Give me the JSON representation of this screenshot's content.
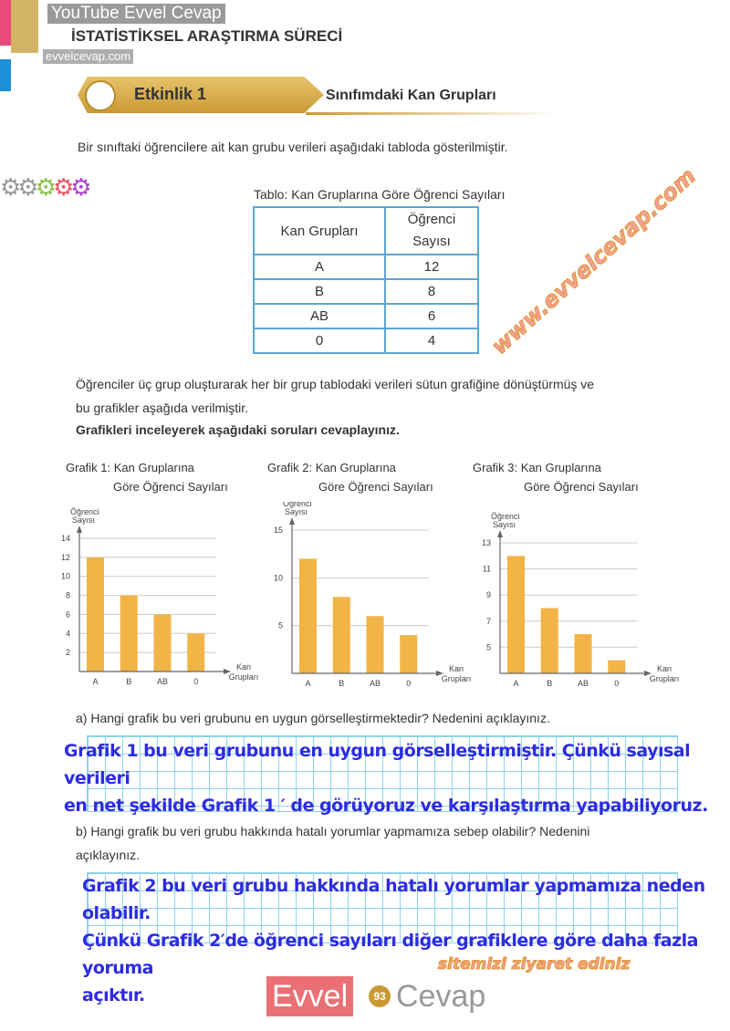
{
  "watermark": {
    "youtube": "YouTube Evvel Cevap",
    "site": "evvelcevap.com",
    "diag1": "www.evvelcevap.com",
    "diag2": "sitemizi ziyaret ediniz",
    "footer_logo": "EvvelCevap"
  },
  "header": {
    "unit_title": "İSTATİSTİKSEL ARAŞTIRMA SÜRECİ"
  },
  "activity": {
    "label": "Etkinlik 1",
    "title": "Sınıfımdaki Kan Grupları"
  },
  "intro": "Bir sınıftaki öğrencilere ait kan grubu verileri aşağıdaki tabloda gösterilmiştir.",
  "table": {
    "caption": "Tablo: Kan Gruplarına Göre Öğrenci Sayıları",
    "headers": [
      "Kan Grupları",
      "Öğrenci Sayısı"
    ],
    "rows": [
      [
        "A",
        "12"
      ],
      [
        "B",
        "8"
      ],
      [
        "AB",
        "6"
      ],
      [
        "0",
        "4"
      ]
    ]
  },
  "para1": "Öğrenciler üç grup oluşturarak her bir grup tablodaki verileri sütun grafiğine dönüştürmüş ve",
  "para2": "bu grafikler aşağıda verilmiştir.",
  "instruction": "Grafikleri inceleyerek aşağıdaki soruları cevaplayınız.",
  "chart_data": [
    {
      "type": "bar",
      "title": "Grafik 1: Kan Gruplarına Göre Öğrenci Sayıları",
      "title_lines": [
        "Grafik 1: Kan Gruplarına",
        "Göre Öğrenci Sayıları"
      ],
      "categories": [
        "A",
        "B",
        "AB",
        "0"
      ],
      "values": [
        12,
        8,
        6,
        4
      ],
      "ylabel": "Öğrenci Sayısı",
      "xlabel": "Kan Grupları",
      "yticks": [
        2,
        4,
        6,
        8,
        10,
        12,
        14
      ],
      "ylim": [
        0,
        14
      ],
      "grid": true,
      "color": "#f2b347"
    },
    {
      "type": "bar",
      "title": "Grafik 2: Kan Gruplarına Göre Öğrenci Sayıları",
      "title_lines": [
        "Grafik 2: Kan Gruplarına",
        "Göre Öğrenci Sayıları"
      ],
      "categories": [
        "A",
        "B",
        "AB",
        "0"
      ],
      "values": [
        12,
        8,
        6,
        4
      ],
      "ylabel": "Öğrenci Sayısı",
      "xlabel": "Kan Grupları",
      "yticks": [
        5,
        10,
        15
      ],
      "ylim": [
        0,
        15
      ],
      "grid": true,
      "color": "#f2b347"
    },
    {
      "type": "bar",
      "title": "Grafik 3: Kan Gruplarına Göre Öğrenci Sayıları",
      "title_lines": [
        "Grafik 3: Kan Gruplarına",
        "Göre Öğrenci Sayıları"
      ],
      "categories": [
        "A",
        "B",
        "AB",
        "0"
      ],
      "values": [
        12,
        8,
        6,
        4
      ],
      "ylabel": "Öğrenci Sayısı",
      "xlabel": "Kan Grupları",
      "yticks": [
        5,
        7,
        9,
        11,
        13
      ],
      "ylim": [
        3,
        13
      ],
      "grid": true,
      "color": "#f2b347"
    }
  ],
  "qa": {
    "q_a": "a) Hangi grafik bu veri grubunu en uygun görselleştirmektedir? Nedenini açıklayınız.",
    "a_a": [
      "Grafik 1 bu veri grubunu en uygun görselleştirmiştir. Çünkü sayısal verileri",
      "en net şekilde Grafik 1 ′ de görüyoruz ve karşılaştırma yapabiliyoruz."
    ],
    "q_b": [
      "b) Hangi grafik bu veri grubu hakkında hatalı yorumlar yapmamıza sebep olabilir? Nedenini",
      "açıklayınız."
    ],
    "a_b": [
      "Grafik 2 bu veri grubu hakkında hatalı yorumlar yapmamıza neden olabilir.",
      "Çünkü Grafik 2′de öğrenci sayıları diğer grafiklere göre daha fazla yoruma",
      "açıktır."
    ]
  },
  "footer": {
    "page": "93"
  }
}
